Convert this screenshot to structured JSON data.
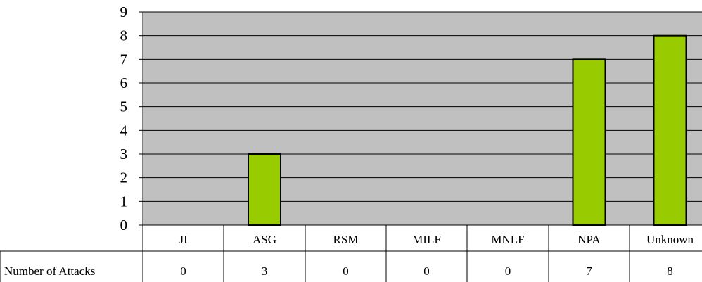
{
  "chart_data": {
    "type": "bar",
    "categories": [
      "JI",
      "ASG",
      "RSM",
      "MILF",
      "MNLF",
      "NPA",
      "Unknown"
    ],
    "series": [
      {
        "name": "Number of Attacks",
        "values": [
          0,
          3,
          0,
          0,
          0,
          7,
          8
        ]
      }
    ],
    "title": "",
    "xlabel": "",
    "ylabel": "",
    "ylim": [
      0,
      9
    ],
    "yticks": [
      "0",
      "1",
      "2",
      "3",
      "4",
      "5",
      "6",
      "7",
      "8",
      "9"
    ],
    "grid": true,
    "data_table": true,
    "bar_color": "#99cc00",
    "plot_background": "#c0c0c0"
  }
}
